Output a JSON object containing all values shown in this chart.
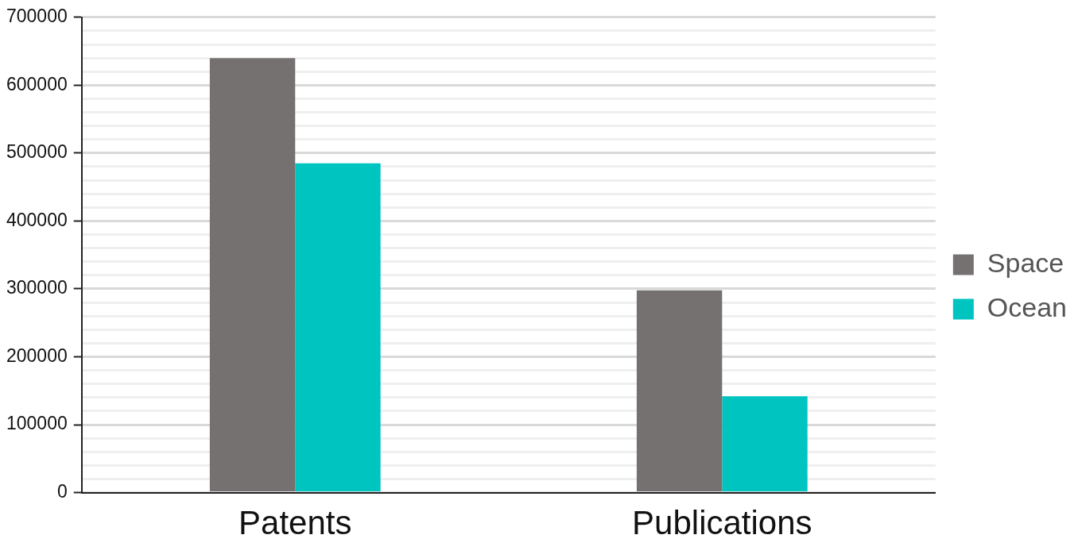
{
  "chart_data": {
    "type": "bar",
    "categories": [
      "Patents",
      "Publications"
    ],
    "series": [
      {
        "name": "Space",
        "color": "#767171",
        "values": [
          640000,
          298000
        ]
      },
      {
        "name": "Ocean",
        "color": "#00c4c0",
        "values": [
          485000,
          142000
        ]
      }
    ],
    "ylim": [
      0,
      700000
    ],
    "yticks": [
      0,
      {
        "value": 20000,
        "label": null
      },
      {
        "value": 40000,
        "label": null
      },
      {
        "value": 60000,
        "label": null
      },
      {
        "value": 80000,
        "label": null
      },
      100000,
      {
        "value": 120000,
        "label": null
      },
      {
        "value": 140000,
        "label": null
      },
      {
        "value": 160000,
        "label": null
      },
      {
        "value": 180000,
        "label": null
      },
      200000,
      {
        "value": 220000,
        "label": null
      },
      {
        "value": 240000,
        "label": null
      },
      {
        "value": 260000,
        "label": null
      },
      {
        "value": 280000,
        "label": null
      },
      300000,
      {
        "value": 320000,
        "label": null
      },
      {
        "value": 340000,
        "label": null
      },
      {
        "value": 360000,
        "label": null
      },
      {
        "value": 380000,
        "label": null
      },
      400000,
      {
        "value": 420000,
        "label": null
      },
      {
        "value": 440000,
        "label": null
      },
      {
        "value": 460000,
        "label": null
      },
      {
        "value": 480000,
        "label": null
      },
      500000,
      {
        "value": 520000,
        "label": null
      },
      {
        "value": 540000,
        "label": null
      },
      {
        "value": 560000,
        "label": null
      },
      {
        "value": 580000,
        "label": null
      },
      600000,
      {
        "value": 620000,
        "label": null
      },
      {
        "value": 640000,
        "label": null
      },
      {
        "value": 660000,
        "label": null
      },
      {
        "value": 680000,
        "label": null
      },
      700000
    ],
    "grid": "y",
    "legend": "right"
  }
}
